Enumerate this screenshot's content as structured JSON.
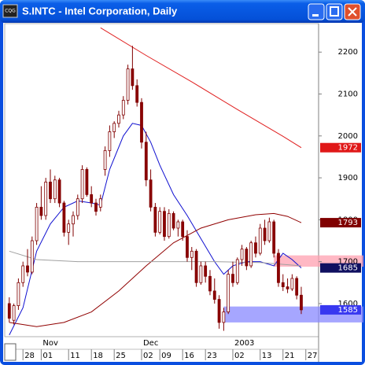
{
  "chart_data": {
    "type": "candlestick",
    "title": "S.INTC - Intel Corporation, Daily",
    "open": [
      1600,
      1560,
      1595,
      1650,
      1690,
      1675,
      1750,
      1830,
      1810,
      1890,
      1850,
      1895,
      1840,
      1770,
      1790,
      1810,
      1850,
      1920,
      1860,
      1840,
      1830,
      1920,
      1965,
      2010,
      2030,
      2050,
      2085,
      2160,
      2120,
      2080,
      1985,
      1895,
      1830,
      1770,
      1820,
      1760,
      1815,
      1780,
      1795,
      1760,
      1710,
      1725,
      1650,
      1690,
      1665,
      1630,
      1610,
      1555,
      1580,
      1670,
      1650,
      1705,
      1730,
      1690,
      1745,
      1720,
      1780,
      1750,
      1795,
      1720,
      1650,
      1640,
      1635,
      1660,
      1620
    ],
    "high": [
      1615,
      1600,
      1660,
      1700,
      1730,
      1760,
      1840,
      1880,
      1900,
      1920,
      1905,
      1900,
      1845,
      1800,
      1820,
      1860,
      1930,
      1925,
      1880,
      1850,
      1860,
      1975,
      2025,
      2035,
      2060,
      2095,
      2170,
      2215,
      2135,
      2090,
      2010,
      1920,
      1840,
      1830,
      1830,
      1825,
      1820,
      1800,
      1800,
      1775,
      1735,
      1730,
      1700,
      1700,
      1680,
      1660,
      1620,
      1590,
      1680,
      1700,
      1710,
      1740,
      1735,
      1750,
      1760,
      1790,
      1800,
      1805,
      1800,
      1730,
      1670,
      1660,
      1670,
      1665,
      1640
    ],
    "low": [
      1555,
      1550,
      1585,
      1640,
      1665,
      1670,
      1740,
      1800,
      1800,
      1840,
      1840,
      1830,
      1760,
      1740,
      1760,
      1800,
      1840,
      1855,
      1830,
      1810,
      1820,
      1905,
      1950,
      1995,
      2020,
      2040,
      2075,
      2110,
      2070,
      1970,
      1880,
      1820,
      1760,
      1765,
      1750,
      1755,
      1775,
      1760,
      1750,
      1700,
      1680,
      1640,
      1645,
      1650,
      1620,
      1600,
      1540,
      1535,
      1575,
      1640,
      1645,
      1690,
      1680,
      1685,
      1710,
      1715,
      1740,
      1745,
      1710,
      1640,
      1630,
      1625,
      1630,
      1610,
      1575
    ],
    "close": [
      1565,
      1595,
      1650,
      1690,
      1675,
      1750,
      1830,
      1810,
      1890,
      1850,
      1895,
      1840,
      1770,
      1790,
      1810,
      1850,
      1920,
      1860,
      1840,
      1820,
      1850,
      1965,
      2010,
      2030,
      2050,
      2085,
      2160,
      2120,
      2080,
      1985,
      1895,
      1830,
      1770,
      1820,
      1760,
      1815,
      1780,
      1795,
      1760,
      1710,
      1725,
      1650,
      1690,
      1665,
      1630,
      1610,
      1555,
      1580,
      1670,
      1650,
      1705,
      1730,
      1690,
      1745,
      1720,
      1780,
      1750,
      1795,
      1720,
      1650,
      1640,
      1635,
      1660,
      1620,
      1585
    ],
    "up_color": "#ffffff",
    "down_color": "#8b0000",
    "edge_color": "#800000",
    "xlim": [
      -1,
      67.8
    ],
    "ylim": [
      1521,
      2268
    ],
    "yticks": [
      1600,
      1700,
      1800,
      1900,
      2000,
      2100,
      2200
    ],
    "xticks": [
      {
        "value": 3,
        "label": "28"
      },
      {
        "value": 7,
        "label": "01"
      },
      {
        "value": 13,
        "label": "11"
      },
      {
        "value": 18,
        "label": "18"
      },
      {
        "value": 23,
        "label": "25"
      },
      {
        "value": 29,
        "label": "02"
      },
      {
        "value": 33,
        "label": "09"
      },
      {
        "value": 38,
        "label": "16"
      },
      {
        "value": 43,
        "label": "23"
      },
      {
        "value": 49,
        "label": "02"
      },
      {
        "value": 55,
        "label": "13"
      },
      {
        "value": 60,
        "label": "21"
      },
      {
        "value": 65,
        "label": "27"
      }
    ],
    "period_labels": [
      {
        "value": 7,
        "label": "Nov"
      },
      {
        "value": 29,
        "label": "Dec"
      },
      {
        "value": 49,
        "label": "2003"
      }
    ],
    "overlays": [
      {
        "color": "#e02020",
        "x": [
          20,
          30,
          40,
          50,
          60,
          64
        ],
        "values": [
          2258,
          2192,
          2129,
          2063,
          1999,
          1972
        ]
      },
      {
        "color": "#1010d0",
        "x": [
          0,
          3,
          6,
          9,
          12,
          15,
          18,
          20,
          22,
          25,
          27,
          29,
          31,
          33,
          36,
          39,
          42,
          45,
          47,
          49,
          52,
          55,
          58,
          60,
          62,
          64
        ],
        "values": [
          1525,
          1590,
          1725,
          1790,
          1830,
          1845,
          1840,
          1835,
          1920,
          2000,
          2030,
          2025,
          1985,
          1930,
          1860,
          1810,
          1755,
          1700,
          1670,
          1690,
          1700,
          1700,
          1690,
          1720,
          1705,
          1685
        ]
      },
      {
        "color": "#900000",
        "x": [
          0,
          6,
          12,
          18,
          24,
          30,
          36,
          42,
          48,
          54,
          58,
          61,
          64
        ],
        "values": [
          1555,
          1545,
          1555,
          1580,
          1630,
          1690,
          1745,
          1780,
          1800,
          1812,
          1815,
          1808,
          1793
        ]
      },
      {
        "color": "#a0a0a0",
        "x": [
          0,
          6,
          15,
          25,
          35,
          45,
          55,
          64
        ],
        "values": [
          1725,
          1705,
          1700,
          1700,
          1700,
          1700,
          1698,
          1690
        ]
      }
    ],
    "bands": [
      {
        "low": 1688,
        "high": 1715,
        "start": 58,
        "color": "#ffa0b0"
      },
      {
        "low": 1555,
        "high": 1593,
        "start": 47,
        "color": "#8888ff"
      }
    ],
    "price_labels": [
      {
        "value": 1972,
        "color": "#e01818"
      },
      {
        "value": 1793,
        "color": "#800000"
      },
      {
        "value": 1685,
        "color": "#101060"
      },
      {
        "value": 1585,
        "color": "#3838f0"
      }
    ]
  }
}
